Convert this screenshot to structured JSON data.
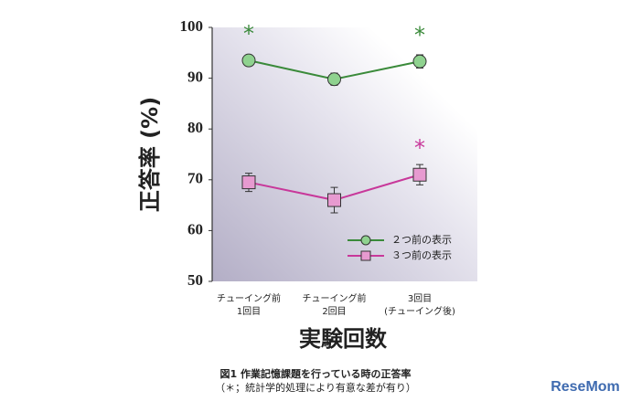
{
  "chart_data": {
    "type": "line",
    "y_label": "正答率 (%)",
    "x_label": "実験回数",
    "categories": [
      [
        "チューイング前",
        "1回目"
      ],
      [
        "チューイング前",
        "2回目"
      ],
      [
        "3回目",
        "(チューイング後)"
      ]
    ],
    "series": [
      {
        "name": "２つ前の表示",
        "color": "#3a8a3a",
        "marker": "circle",
        "marker_color": "#8fd28f",
        "values": [
          93.5,
          89.8,
          93.3
        ],
        "errors": [
          0.8,
          1.2,
          1.3
        ],
        "significant": [
          true,
          false,
          true
        ]
      },
      {
        "name": "３つ前の表示",
        "color": "#c8389a",
        "marker": "square",
        "marker_color": "#e79ad0",
        "values": [
          69.5,
          66,
          71
        ],
        "errors": [
          1.8,
          2.5,
          2.0
        ],
        "significant": [
          false,
          false,
          true
        ]
      }
    ],
    "significance_mark": "*",
    "ylim": [
      50,
      100
    ],
    "yticks": [
      50,
      60,
      70,
      80,
      90,
      100
    ],
    "legend": "lower-right",
    "caption": [
      "図1 作業記憶課題を行っている時の正答率",
      "（＊；統計学的処理により有意な差が有り）"
    ],
    "watermark": "ReseMom"
  }
}
